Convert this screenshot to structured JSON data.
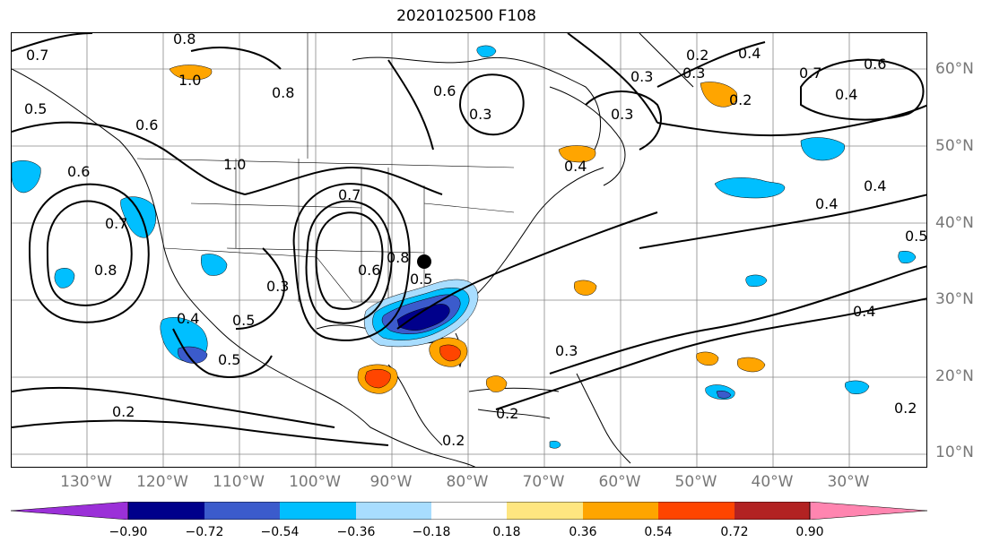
{
  "title": "2020102500 F108",
  "lat_labels": [
    "60°N",
    "50°N",
    "40°N",
    "30°N",
    "20°N",
    "10°N"
  ],
  "lon_labels": [
    "130°W",
    "120°W",
    "110°W",
    "100°W",
    "90°W",
    "80°W",
    "70°W",
    "60°W",
    "50°W",
    "40°W",
    "30°W"
  ],
  "contour_labels": [
    "0.8",
    "0.7",
    "0.5",
    "1.0",
    "0.6",
    "0.8",
    "0.6",
    "0.7",
    "0.8",
    "0.4",
    "0.3",
    "0.5",
    "0.5",
    "0.2",
    "1.0",
    "0.8",
    "0.6",
    "0.7",
    "0.6",
    "0.5",
    "0.3",
    "0.2",
    "0.3",
    "0.2",
    "0.2",
    "0.4",
    "0.7",
    "0.6",
    "0.4",
    "0.3",
    "0.2",
    "0.4",
    "0.4",
    "0.5",
    "0.4",
    "0.3",
    "0.4",
    "0.2",
    "0.3"
  ],
  "colorbar": {
    "ticks": [
      "−0.90",
      "−0.72",
      "−0.54",
      "−0.36",
      "−0.18",
      "0.18",
      "0.36",
      "0.54",
      "0.72",
      "0.90"
    ],
    "colors": [
      "#9b30d8",
      "#00008b",
      "#3b5bcc",
      "#00bfff",
      "#a8ddff",
      "#ffffff",
      "#ffe680",
      "#ffa500",
      "#ff4500",
      "#b22222",
      "#ff85b0"
    ]
  },
  "marker_label": ""
}
